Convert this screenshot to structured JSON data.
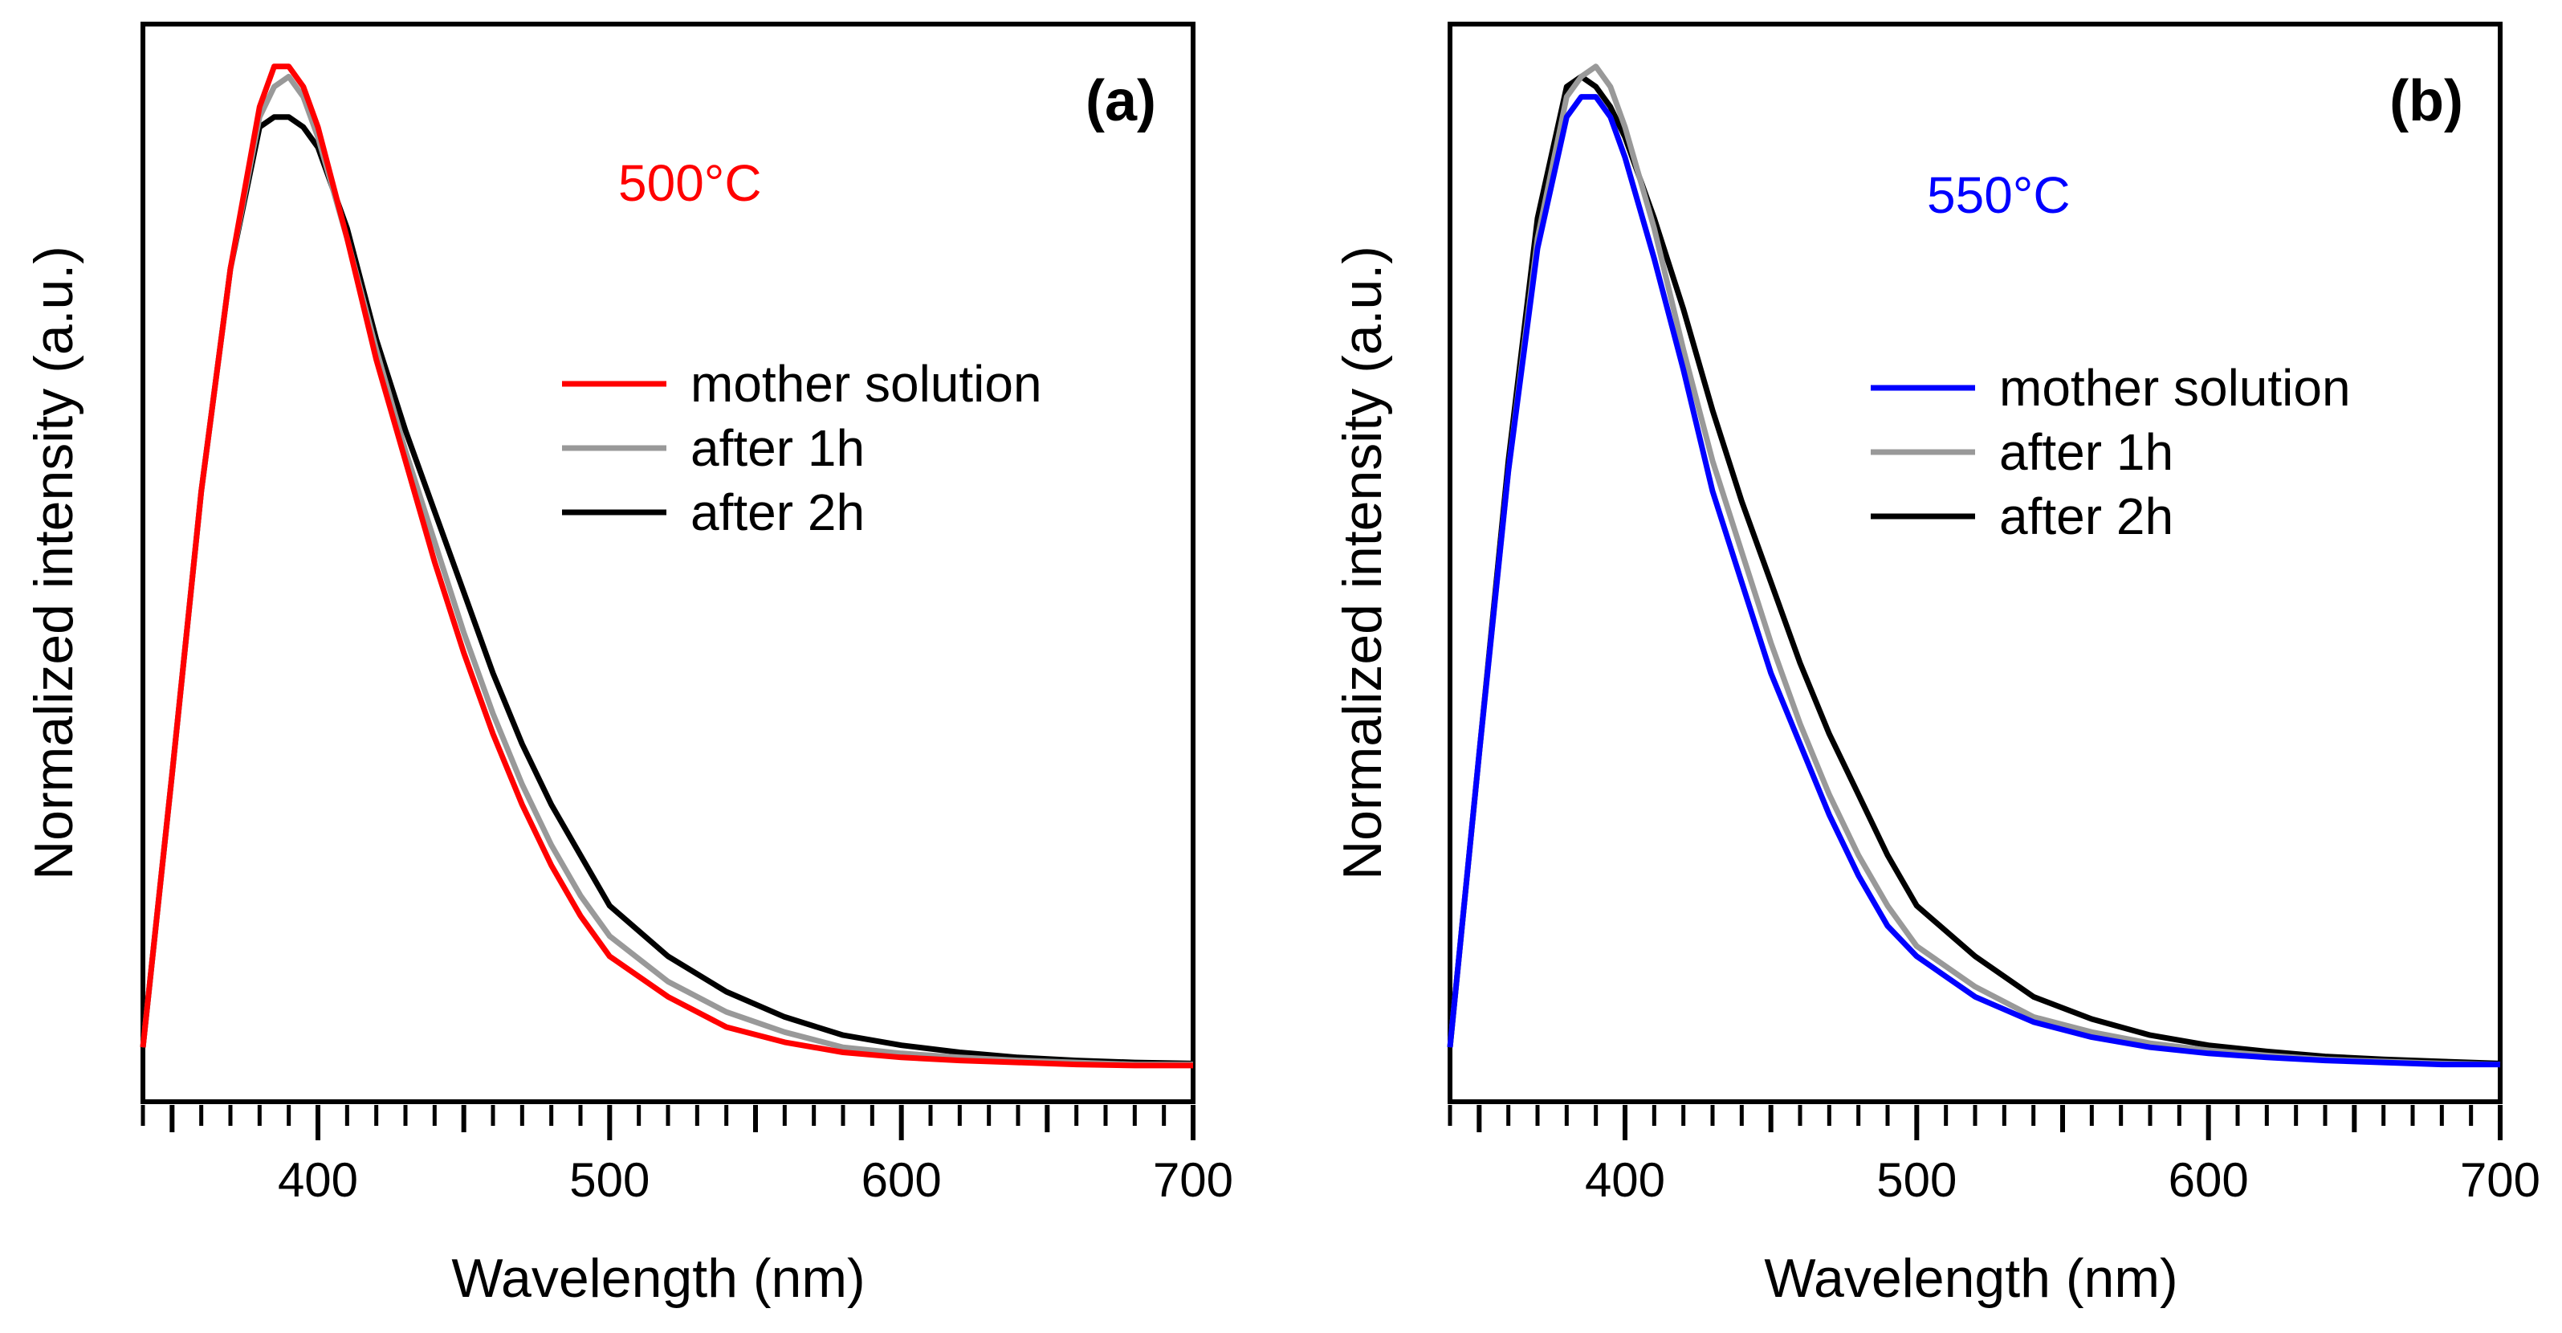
{
  "chart_data": [
    {
      "type": "line",
      "panel_label": "(a)",
      "annotation": "500°C",
      "annotation_color": "#ff0000",
      "xlabel": "Wavelength (nm)",
      "ylabel": "Normalized intensity (a.u.)",
      "xlim": [
        340,
        700
      ],
      "ylim": [
        0,
        1.03
      ],
      "xticks": [
        400,
        500,
        600,
        700
      ],
      "minor_tick_step": 10,
      "y_tick_labels": false,
      "grid": false,
      "legend_position": "right-middle",
      "x": [
        340,
        350,
        360,
        370,
        380,
        385,
        390,
        395,
        400,
        410,
        420,
        430,
        440,
        450,
        460,
        470,
        480,
        490,
        500,
        520,
        540,
        560,
        580,
        600,
        620,
        640,
        660,
        680,
        700
      ],
      "series": [
        {
          "name": "mother solution",
          "color": "#ff0000",
          "values": [
            0.03,
            0.3,
            0.58,
            0.8,
            0.96,
            1.0,
            1.0,
            0.98,
            0.94,
            0.83,
            0.71,
            0.61,
            0.51,
            0.42,
            0.34,
            0.27,
            0.21,
            0.16,
            0.12,
            0.08,
            0.05,
            0.035,
            0.025,
            0.02,
            0.017,
            0.015,
            0.013,
            0.012,
            0.012
          ]
        },
        {
          "name": "after 1h",
          "color": "#999999",
          "values": [
            0.03,
            0.3,
            0.58,
            0.8,
            0.95,
            0.98,
            0.99,
            0.97,
            0.93,
            0.83,
            0.72,
            0.62,
            0.53,
            0.44,
            0.36,
            0.29,
            0.23,
            0.18,
            0.14,
            0.095,
            0.065,
            0.045,
            0.03,
            0.024,
            0.02,
            0.017,
            0.015,
            0.013,
            0.013
          ]
        },
        {
          "name": "after 2h",
          "color": "#000000",
          "values": [
            0.03,
            0.3,
            0.58,
            0.8,
            0.94,
            0.95,
            0.95,
            0.94,
            0.92,
            0.84,
            0.73,
            0.64,
            0.56,
            0.48,
            0.4,
            0.33,
            0.27,
            0.22,
            0.17,
            0.12,
            0.085,
            0.06,
            0.042,
            0.032,
            0.025,
            0.02,
            0.017,
            0.015,
            0.014
          ]
        }
      ]
    },
    {
      "type": "line",
      "panel_label": "(b)",
      "annotation": "550°C",
      "annotation_color": "#0000ff",
      "xlabel": "Wavelength (nm)",
      "ylabel": "Normalized intensity (a.u.)",
      "xlim": [
        340,
        700
      ],
      "ylim": [
        0,
        1.03
      ],
      "xticks": [
        400,
        500,
        600,
        700
      ],
      "minor_tick_step": 10,
      "y_tick_labels": false,
      "grid": false,
      "legend_position": "right-middle",
      "x": [
        340,
        350,
        360,
        370,
        380,
        385,
        390,
        395,
        400,
        410,
        420,
        430,
        440,
        450,
        460,
        470,
        480,
        490,
        500,
        520,
        540,
        560,
        580,
        600,
        620,
        640,
        660,
        680,
        700
      ],
      "series": [
        {
          "name": "mother solution",
          "color": "#0000ff",
          "values": [
            0.03,
            0.32,
            0.6,
            0.82,
            0.95,
            0.97,
            0.97,
            0.95,
            0.91,
            0.81,
            0.7,
            0.58,
            0.49,
            0.4,
            0.33,
            0.26,
            0.2,
            0.15,
            0.12,
            0.08,
            0.055,
            0.04,
            0.03,
            0.024,
            0.02,
            0.017,
            0.015,
            0.013,
            0.013
          ]
        },
        {
          "name": "after 1h",
          "color": "#999999",
          "values": [
            0.03,
            0.32,
            0.6,
            0.83,
            0.97,
            0.99,
            1.0,
            0.98,
            0.94,
            0.84,
            0.72,
            0.61,
            0.52,
            0.43,
            0.35,
            0.28,
            0.22,
            0.17,
            0.13,
            0.09,
            0.06,
            0.045,
            0.034,
            0.027,
            0.022,
            0.018,
            0.016,
            0.014,
            0.013
          ]
        },
        {
          "name": "after 2h",
          "color": "#000000",
          "values": [
            0.03,
            0.32,
            0.61,
            0.85,
            0.98,
            0.99,
            0.98,
            0.96,
            0.93,
            0.85,
            0.76,
            0.66,
            0.57,
            0.49,
            0.41,
            0.34,
            0.28,
            0.22,
            0.17,
            0.12,
            0.08,
            0.058,
            0.042,
            0.032,
            0.026,
            0.021,
            0.018,
            0.016,
            0.014
          ]
        }
      ]
    }
  ]
}
